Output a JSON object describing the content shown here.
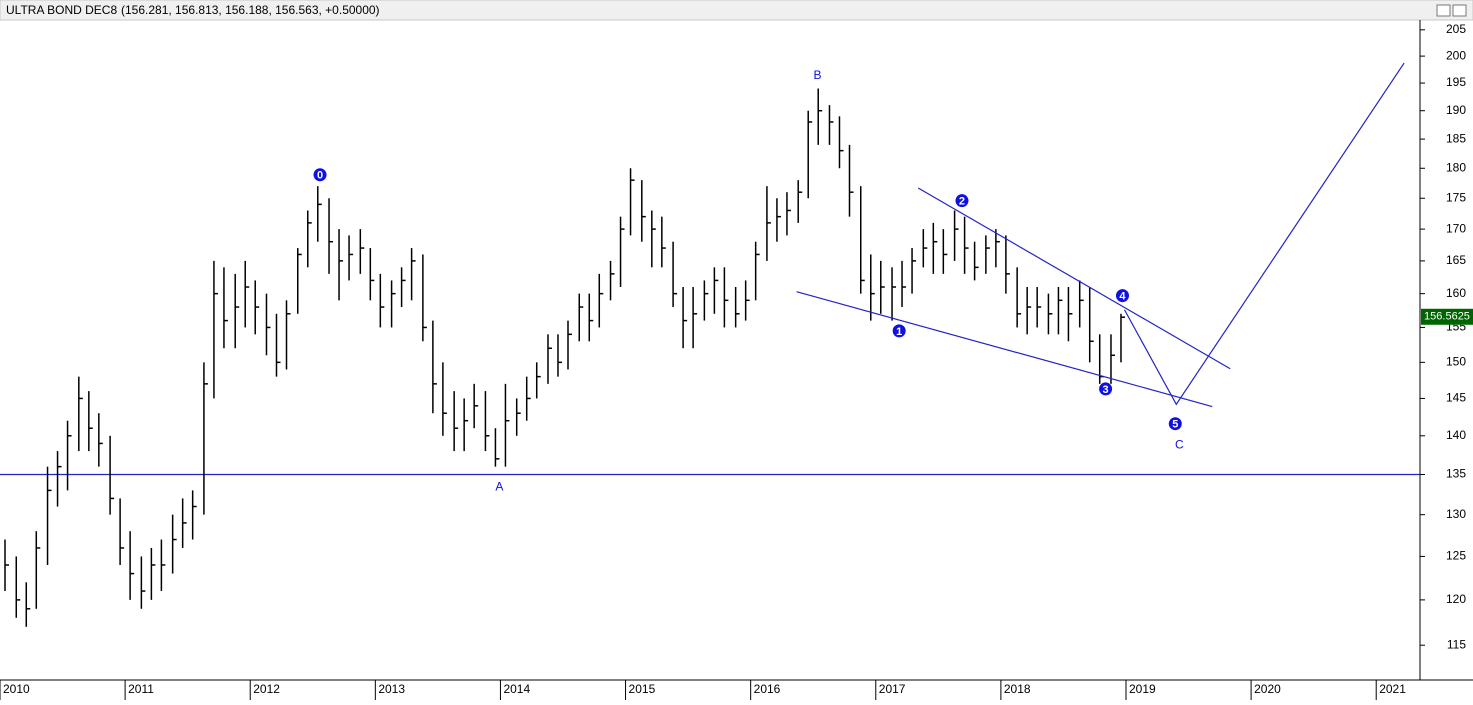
{
  "chart_data": {
    "type": "ohlc",
    "title": "ULTRA BOND DEC8",
    "subtitle": "(156.281, 156.813, 156.188, 156.563, +0.50000)",
    "color": "#000000",
    "line_color": "#2323c8",
    "log_y": true,
    "grid": false,
    "xlim": [
      2010.0,
      2021.35
    ],
    "xticks": [
      2010,
      2011,
      2012,
      2013,
      2014,
      2015,
      2016,
      2017,
      2018,
      2019,
      2020,
      2021
    ],
    "ylim": [
      111.3,
      206.9
    ],
    "yticks": [
      115,
      120,
      125,
      130,
      135,
      140,
      145,
      150,
      155,
      160,
      165,
      170,
      175,
      180,
      185,
      190,
      195,
      200,
      205
    ],
    "x": [
      2010.04,
      2010.13,
      2010.21,
      2010.29,
      2010.38,
      2010.46,
      2010.54,
      2010.63,
      2010.71,
      2010.79,
      2010.88,
      2010.96,
      2011.04,
      2011.13,
      2011.21,
      2011.29,
      2011.38,
      2011.46,
      2011.54,
      2011.63,
      2011.71,
      2011.79,
      2011.88,
      2011.96,
      2012.04,
      2012.13,
      2012.21,
      2012.29,
      2012.38,
      2012.46,
      2012.54,
      2012.63,
      2012.71,
      2012.79,
      2012.88,
      2012.96,
      2013.04,
      2013.13,
      2013.21,
      2013.29,
      2013.38,
      2013.46,
      2013.54,
      2013.63,
      2013.71,
      2013.79,
      2013.88,
      2013.96,
      2014.04,
      2014.13,
      2014.21,
      2014.29,
      2014.38,
      2014.46,
      2014.54,
      2014.63,
      2014.71,
      2014.79,
      2014.88,
      2014.96,
      2015.04,
      2015.13,
      2015.21,
      2015.29,
      2015.38,
      2015.46,
      2015.54,
      2015.63,
      2015.71,
      2015.79,
      2015.88,
      2015.96,
      2016.04,
      2016.13,
      2016.21,
      2016.29,
      2016.38,
      2016.46,
      2016.54,
      2016.63,
      2016.71,
      2016.79,
      2016.88,
      2016.96,
      2017.04,
      2017.13,
      2017.21,
      2017.29,
      2017.38,
      2017.46,
      2017.54,
      2017.63,
      2017.71,
      2017.79,
      2017.88,
      2017.96,
      2018.04,
      2018.13,
      2018.21,
      2018.29,
      2018.38,
      2018.46,
      2018.54,
      2018.63,
      2018.71,
      2018.79,
      2018.88,
      2018.96
    ],
    "high": [
      127,
      125,
      122,
      128,
      136,
      138,
      142,
      148,
      146,
      143,
      140,
      132,
      128,
      125,
      126,
      127,
      130,
      132,
      133,
      150,
      165,
      164,
      163,
      165,
      162,
      160,
      157,
      159,
      167,
      173,
      177,
      175,
      170,
      169,
      170,
      167,
      163,
      162,
      164,
      167,
      166,
      156,
      150,
      146,
      145,
      147,
      146,
      141,
      147,
      145,
      148,
      150,
      154,
      154,
      156,
      160,
      160,
      163,
      165,
      172,
      180,
      178,
      173,
      172,
      168,
      161,
      161,
      162,
      164,
      164,
      161,
      162,
      168,
      177,
      175,
      176,
      178,
      190,
      194,
      191,
      189,
      184,
      177,
      166,
      165,
      164,
      165,
      167,
      170,
      171,
      170,
      173,
      172,
      168,
      169,
      170,
      169,
      164,
      161,
      161,
      160,
      161,
      161,
      162,
      161,
      154,
      154,
      157
    ],
    "low": [
      121,
      118,
      117,
      119,
      124,
      131,
      133,
      138,
      138,
      136,
      130,
      124,
      120,
      119,
      120,
      121,
      123,
      126,
      127,
      130,
      145,
      152,
      152,
      155,
      154,
      151,
      148,
      149,
      157,
      164,
      168,
      163,
      159,
      162,
      163,
      159,
      155,
      155,
      158,
      159,
      153,
      143,
      140,
      138,
      138,
      141,
      138,
      136,
      136,
      140,
      142,
      145,
      147,
      148,
      149,
      153,
      153,
      155,
      159,
      161,
      169,
      168,
      164,
      164,
      158,
      152,
      152,
      156,
      157,
      155,
      155,
      156,
      159,
      165,
      168,
      169,
      171,
      175,
      184,
      184,
      180,
      172,
      160,
      156,
      157,
      156,
      158,
      160,
      164,
      163,
      163,
      165,
      163,
      162,
      163,
      164,
      160,
      155,
      154,
      155,
      154,
      154,
      153,
      155,
      150,
      147,
      147,
      150
    ],
    "close": [
      124,
      120,
      119,
      126,
      133,
      136,
      140,
      145,
      141,
      139,
      132,
      126,
      123,
      121,
      124,
      124,
      127,
      129,
      131,
      147,
      160,
      156,
      158,
      161,
      158,
      155,
      150,
      157,
      166,
      171,
      174,
      168,
      165,
      166,
      167,
      162,
      158,
      160,
      162,
      165,
      155,
      147,
      143,
      141,
      142,
      144,
      140,
      137,
      142,
      143,
      145,
      148,
      152,
      150,
      154,
      158,
      156,
      160,
      163,
      170,
      178,
      172,
      170,
      167,
      160,
      156,
      157,
      160,
      162,
      159,
      157,
      159,
      166,
      171,
      172,
      173,
      176,
      188,
      190,
      188,
      183,
      176,
      162,
      160,
      161,
      161,
      161,
      165,
      167,
      168,
      166,
      170,
      167,
      164,
      167,
      168,
      163,
      157,
      158,
      158,
      157,
      159,
      157,
      159,
      153,
      148,
      151,
      156.5
    ],
    "hline": 135,
    "last_price": 156.5625,
    "lines": [
      {
        "x": [
          2016.367,
          2019.689
        ],
        "y": [
          160.3,
          143.9
        ]
      },
      {
        "x": [
          2017.339,
          2019.833
        ],
        "y": [
          176.7,
          149.1
        ]
      },
      {
        "x": [
          2018.988,
          2019.402,
          2021.223
        ],
        "y": [
          157.6,
          144.2,
          198.7
        ]
      }
    ],
    "annotations": [
      {
        "text": "0",
        "x": 2012.558,
        "y": 178.9,
        "circled": true
      },
      {
        "text": "A",
        "x": 2013.992,
        "y": 133.5,
        "circled": false
      },
      {
        "text": "B",
        "x": 2016.534,
        "y": 196.5,
        "circled": false
      },
      {
        "text": "1",
        "x": 2017.187,
        "y": 154.5,
        "circled": true
      },
      {
        "text": "2",
        "x": 2017.689,
        "y": 174.6,
        "circled": true
      },
      {
        "text": "3",
        "x": 2018.837,
        "y": 146.3,
        "circled": true
      },
      {
        "text": "4",
        "x": 2018.972,
        "y": 159.7,
        "circled": true
      },
      {
        "text": "5",
        "x": 2019.394,
        "y": 141.6,
        "circled": true
      },
      {
        "text": "C",
        "x": 2019.426,
        "y": 138.9,
        "circled": false
      }
    ]
  }
}
